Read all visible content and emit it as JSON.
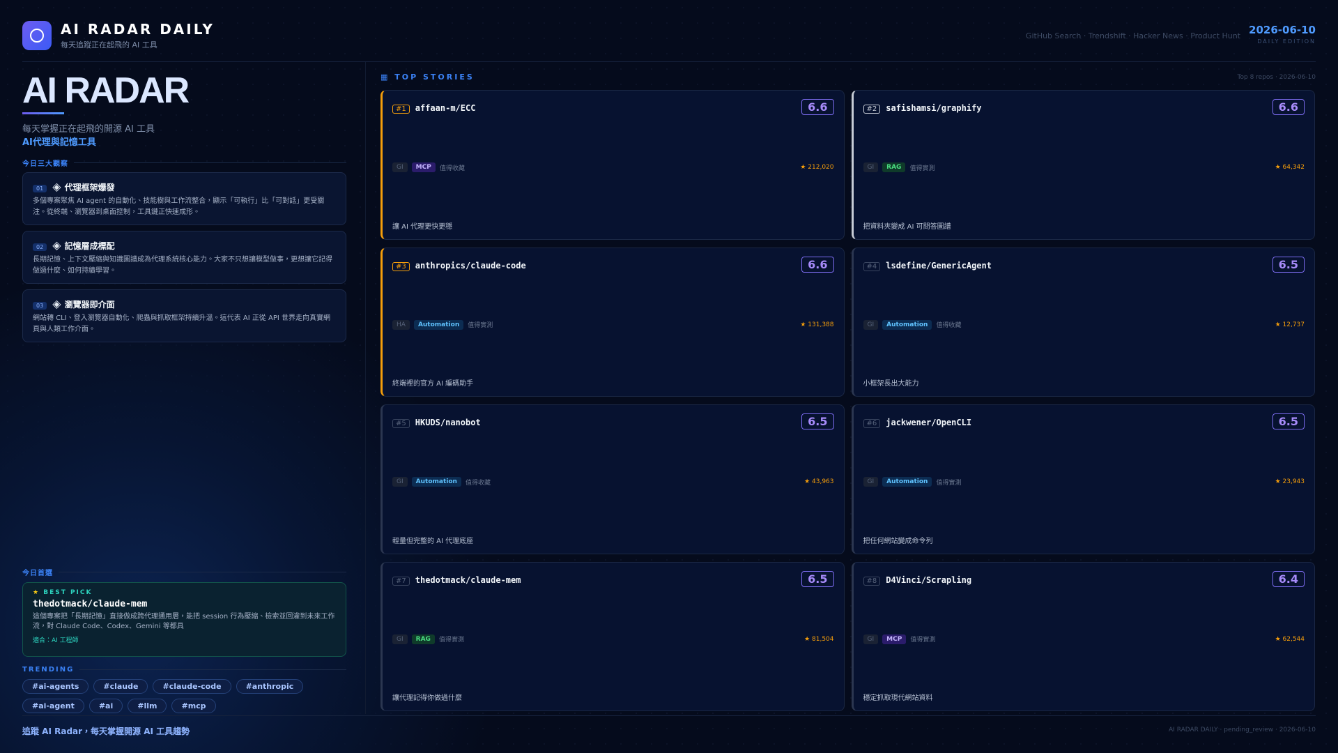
{
  "header": {
    "logo_title": "AI RADAR DAILY",
    "subtitle": "每天追蹤正在起飛的 AI 工具",
    "sources": "GitHub Search · Trendshift · Hacker News · Product Hunt",
    "date": "2026-06-10",
    "edition": "DAILY EDITION"
  },
  "left": {
    "hero_title": "AI RADAR",
    "tagline": "每天掌握正在起飛的開源 AI 工具",
    "theme": "AI代理與記憶工具",
    "insights_label": "今日三大觀察",
    "insights": [
      {
        "num": "01",
        "title": "代理框架爆發",
        "body": "多個專案聚焦 AI agent 的自動化、技能樹與工作流整合，顯示「可執行」比「可對話」更受關注。從終端、瀏覽器到桌面控制，工具鏈正快速成形。"
      },
      {
        "num": "02",
        "title": "記憶層成標配",
        "body": "長期記憶、上下文壓縮與知識圖譜成為代理系統核心能力。大家不只想讓模型做事，更想讓它記得做過什麼、如何持續學習。"
      },
      {
        "num": "03",
        "title": "瀏覽器即介面",
        "body": "網站轉 CLI、登入瀏覽器自動化、爬蟲與抓取框架持續升溫。這代表 AI 正從 API 世界走向真實網頁與人類工作介面。"
      }
    ],
    "best_pick_label": "今日首選",
    "best_pick": {
      "badge": "BEST PICK",
      "name": "thedotmack/claude-mem",
      "body": "這個專案把「長期記憶」直接做成跨代理通用層，能把 session 行為壓縮、檢索並回灌到未來工作流，對 Claude Code、Codex、Gemini 等都具",
      "audience": "適合：AI 工程師"
    },
    "trending_label": "TRENDING",
    "tags": [
      "#ai-agents",
      "#claude",
      "#claude-code",
      "#anthropic",
      "#ai-agent",
      "#ai",
      "#llm",
      "#mcp"
    ]
  },
  "stories": {
    "label": "TOP STORIES",
    "meta": "Top 8 repos · 2026-06-10",
    "items": [
      {
        "rank": "#1",
        "name": "affaan-m/ECC",
        "score": 6.6,
        "source": "GI",
        "tag": "MCP",
        "verdict": "值得收藏",
        "stars": "212,020",
        "desc": "讓 AI 代理更快更穩"
      },
      {
        "rank": "#2",
        "name": "safishamsi/graphify",
        "score": 6.6,
        "source": "GI",
        "tag": "RAG",
        "verdict": "值得實測",
        "stars": "64,342",
        "desc": "把資料夾變成 AI 可問答圖譜"
      },
      {
        "rank": "#3",
        "name": "anthropics/claude-code",
        "score": 6.6,
        "source": "HA",
        "tag": "Automation",
        "verdict": "值得實測",
        "stars": "131,388",
        "desc": "終端裡的官方 AI 編碼助手"
      },
      {
        "rank": "#4",
        "name": "lsdefine/GenericAgent",
        "score": 6.5,
        "source": "GI",
        "tag": "Automation",
        "verdict": "值得收藏",
        "stars": "12,737",
        "desc": "小框架長出大能力"
      },
      {
        "rank": "#5",
        "name": "HKUDS/nanobot",
        "score": 6.5,
        "source": "GI",
        "tag": "Automation",
        "verdict": "值得收藏",
        "stars": "43,963",
        "desc": "輕量但完整的 AI 代理底座"
      },
      {
        "rank": "#6",
        "name": "jackwener/OpenCLI",
        "score": 6.5,
        "source": "GI",
        "tag": "Automation",
        "verdict": "值得實測",
        "stars": "23,943",
        "desc": "把任何網站變成命令列"
      },
      {
        "rank": "#7",
        "name": "thedotmack/claude-mem",
        "score": 6.5,
        "source": "GI",
        "tag": "RAG",
        "verdict": "值得實測",
        "stars": "81,504",
        "desc": "讓代理記得你做過什麼"
      },
      {
        "rank": "#8",
        "name": "D4Vinci/Scrapling",
        "score": 6.4,
        "source": "GI",
        "tag": "MCP",
        "verdict": "值得實測",
        "stars": "62,544",
        "desc": "穩定抓取現代網站資料"
      }
    ]
  },
  "footer": {
    "cta": "追蹤 AI Radar，每天掌握開源 AI 工具趨勢",
    "meta": "AI RADAR DAILY · pending_review · 2026-06-10"
  }
}
